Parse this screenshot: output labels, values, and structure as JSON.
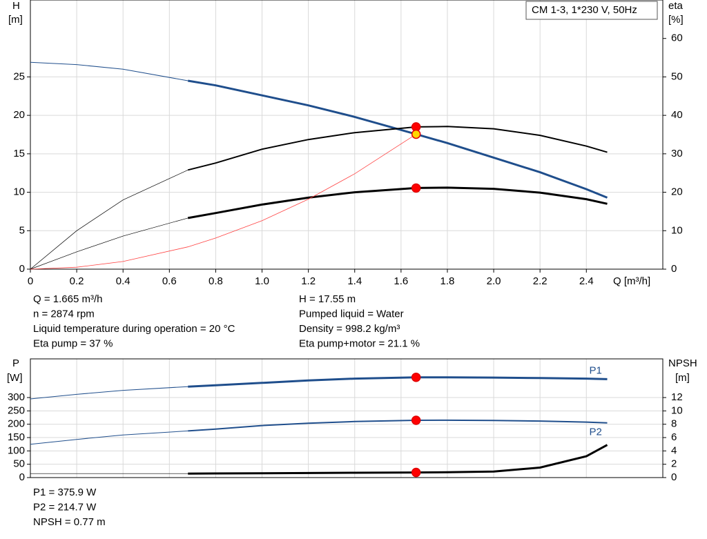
{
  "chart_data": [
    {
      "type": "line",
      "title": "CM 1-3, 1*230 V, 50Hz",
      "y_label": [
        "H",
        "[m]"
      ],
      "y2_label": [
        "eta",
        "[%]"
      ],
      "x_label": "Q [m³/h]",
      "x": [
        0,
        0.2,
        0.4,
        0.68,
        0.8,
        1.0,
        1.2,
        1.4,
        1.665,
        1.8,
        2.0,
        2.2,
        2.4,
        2.49
      ],
      "xlim": [
        0,
        2.73
      ],
      "xticks": [
        0,
        0.2,
        0.4,
        0.6,
        0.8,
        {
          "value": 1,
          "label": "1.0"
        },
        1.2,
        1.4,
        1.6,
        1.8,
        {
          "value": 2,
          "label": "2.0"
        },
        2.2,
        2.4
      ],
      "ylim": [
        0,
        35
      ],
      "yticks": [
        0,
        5,
        10,
        15,
        20,
        25
      ],
      "y2lim": [
        0,
        70
      ],
      "y2ticks": [
        0,
        10,
        20,
        30,
        40,
        50,
        60
      ],
      "grid": true,
      "series": [
        {
          "color": "#1f4e8c",
          "width": 1,
          "axis": "y",
          "values": [
            26.9,
            26.6,
            26.0,
            24.5,
            null,
            null,
            null,
            null,
            null,
            null,
            null,
            null,
            null,
            null
          ]
        },
        {
          "color": "#1f4e8c",
          "width": 3,
          "axis": "y",
          "values": [
            null,
            null,
            null,
            24.5,
            23.9,
            22.6,
            21.3,
            19.8,
            17.55,
            16.4,
            14.5,
            12.6,
            10.4,
            9.3
          ]
        },
        {
          "color": "#000000",
          "width": 0.7,
          "axis": "y2",
          "values": [
            0,
            10,
            18,
            25.8,
            null,
            null,
            null,
            null,
            null,
            null,
            null,
            null,
            null,
            null
          ]
        },
        {
          "color": "#000000",
          "width": 2,
          "axis": "y2",
          "values": [
            null,
            null,
            null,
            25.8,
            27.6,
            31.2,
            33.7,
            35.5,
            37,
            37.1,
            36.5,
            34.8,
            32,
            30.4
          ]
        },
        {
          "color": "#000000",
          "width": 0.7,
          "axis": "y2",
          "values": [
            0,
            4.5,
            8.6,
            13.3,
            null,
            null,
            null,
            null,
            null,
            null,
            null,
            null,
            null,
            null
          ]
        },
        {
          "color": "#000000",
          "width": 3,
          "axis": "y2",
          "values": [
            null,
            null,
            null,
            13.3,
            14.6,
            16.8,
            18.6,
            20,
            21.1,
            21.2,
            20.9,
            19.9,
            18.2,
            17
          ]
        },
        {
          "color": "#ff4040",
          "width": 0.8,
          "axis": "y",
          "values": [
            0,
            0.25,
            1.0,
            2.9,
            4.05,
            6.3,
            9.1,
            12.4,
            17.55,
            null,
            null,
            null,
            null,
            null
          ]
        },
        {
          "marker": "dot",
          "color": "#ff0000",
          "axis": "y2",
          "values": [
            null,
            null,
            null,
            null,
            null,
            null,
            null,
            null,
            37,
            null,
            null,
            null,
            null,
            null
          ]
        },
        {
          "marker": "dot",
          "color": "#ff0000",
          "axis": "y2",
          "values": [
            null,
            null,
            null,
            null,
            null,
            null,
            null,
            null,
            21.1,
            null,
            null,
            null,
            null,
            null
          ]
        },
        {
          "marker": "dot",
          "color": "#ffd700",
          "axis": "y",
          "values": [
            null,
            null,
            null,
            null,
            null,
            null,
            null,
            null,
            17.55,
            null,
            null,
            null,
            null,
            null
          ]
        }
      ],
      "annotations": [
        [
          "Q = 1.665 m³/h",
          "n = 2874 rpm",
          "Liquid temperature during operation = 20 °C",
          "Eta pump = 37 %"
        ],
        [
          "H = 17.55 m",
          "Pumped liquid = Water",
          "Density = 998.2 kg/m³",
          "Eta pump+motor = 21.1 %"
        ]
      ]
    },
    {
      "type": "line",
      "y_label": [
        "P",
        "[W]"
      ],
      "y2_label": [
        "NPSH",
        "[m]"
      ],
      "x": [
        0,
        0.2,
        0.4,
        0.68,
        0.8,
        1.0,
        1.2,
        1.4,
        1.665,
        1.8,
        2.0,
        2.2,
        2.4,
        2.49
      ],
      "xlim": [
        0,
        2.73
      ],
      "xticks": [
        0,
        0.2,
        0.4,
        0.6,
        0.8,
        1,
        1.2,
        1.4,
        1.6,
        1.8,
        2,
        2.2,
        2.4
      ],
      "ylim": [
        0,
        445
      ],
      "yticks": [
        0,
        50,
        100,
        150,
        200,
        250,
        300
      ],
      "y2lim": [
        0,
        17.8
      ],
      "y2ticks": [
        0,
        2,
        4,
        6,
        8,
        10,
        12
      ],
      "grid": true,
      "series": [
        {
          "color": "#1f4e8c",
          "width": 1,
          "axis": "y",
          "values": [
            295,
            312,
            327,
            341,
            null,
            null,
            null,
            null,
            null,
            null,
            null,
            null,
            null,
            null
          ]
        },
        {
          "name": "P1",
          "label_side": "above",
          "color": "#1f4e8c",
          "width": 3,
          "axis": "y",
          "values": [
            null,
            null,
            null,
            341,
            346,
            355,
            364,
            371,
            375.9,
            376,
            375,
            373,
            371,
            369
          ]
        },
        {
          "color": "#1f4e8c",
          "width": 1,
          "axis": "y",
          "values": [
            125,
            143,
            160,
            175,
            null,
            null,
            null,
            null,
            null,
            null,
            null,
            null,
            null,
            null
          ]
        },
        {
          "name": "P2",
          "label_side": "below",
          "color": "#1f4e8c",
          "width": 2,
          "axis": "y",
          "values": [
            null,
            null,
            null,
            175,
            182,
            195,
            204,
            210,
            214.7,
            215,
            214,
            212,
            208,
            205
          ]
        },
        {
          "color": "#000000",
          "width": 0.7,
          "axis": "y2",
          "values": [
            0.6,
            0.6,
            0.6,
            0.6,
            null,
            null,
            null,
            null,
            null,
            null,
            null,
            null,
            null,
            null
          ]
        },
        {
          "color": "#000000",
          "width": 3,
          "axis": "y2",
          "values": [
            null,
            null,
            null,
            0.6,
            0.62,
            0.65,
            0.68,
            0.72,
            0.77,
            0.8,
            0.9,
            1.5,
            3.2,
            4.9
          ]
        },
        {
          "marker": "dot",
          "color": "#ff0000",
          "axis": "y",
          "values": [
            null,
            null,
            null,
            null,
            null,
            null,
            null,
            null,
            375.9,
            null,
            null,
            null,
            null,
            null
          ]
        },
        {
          "marker": "dot",
          "color": "#ff0000",
          "axis": "y",
          "values": [
            null,
            null,
            null,
            null,
            null,
            null,
            null,
            null,
            214.7,
            null,
            null,
            null,
            null,
            null
          ]
        },
        {
          "marker": "dot",
          "color": "#ff0000",
          "axis": "y2",
          "values": [
            null,
            null,
            null,
            null,
            null,
            null,
            null,
            null,
            0.77,
            null,
            null,
            null,
            null,
            null
          ]
        }
      ],
      "annotations": [
        [
          "P1 = 375.9 W",
          "P2 = 214.7 W",
          "NPSH = 0.77 m"
        ]
      ]
    }
  ]
}
